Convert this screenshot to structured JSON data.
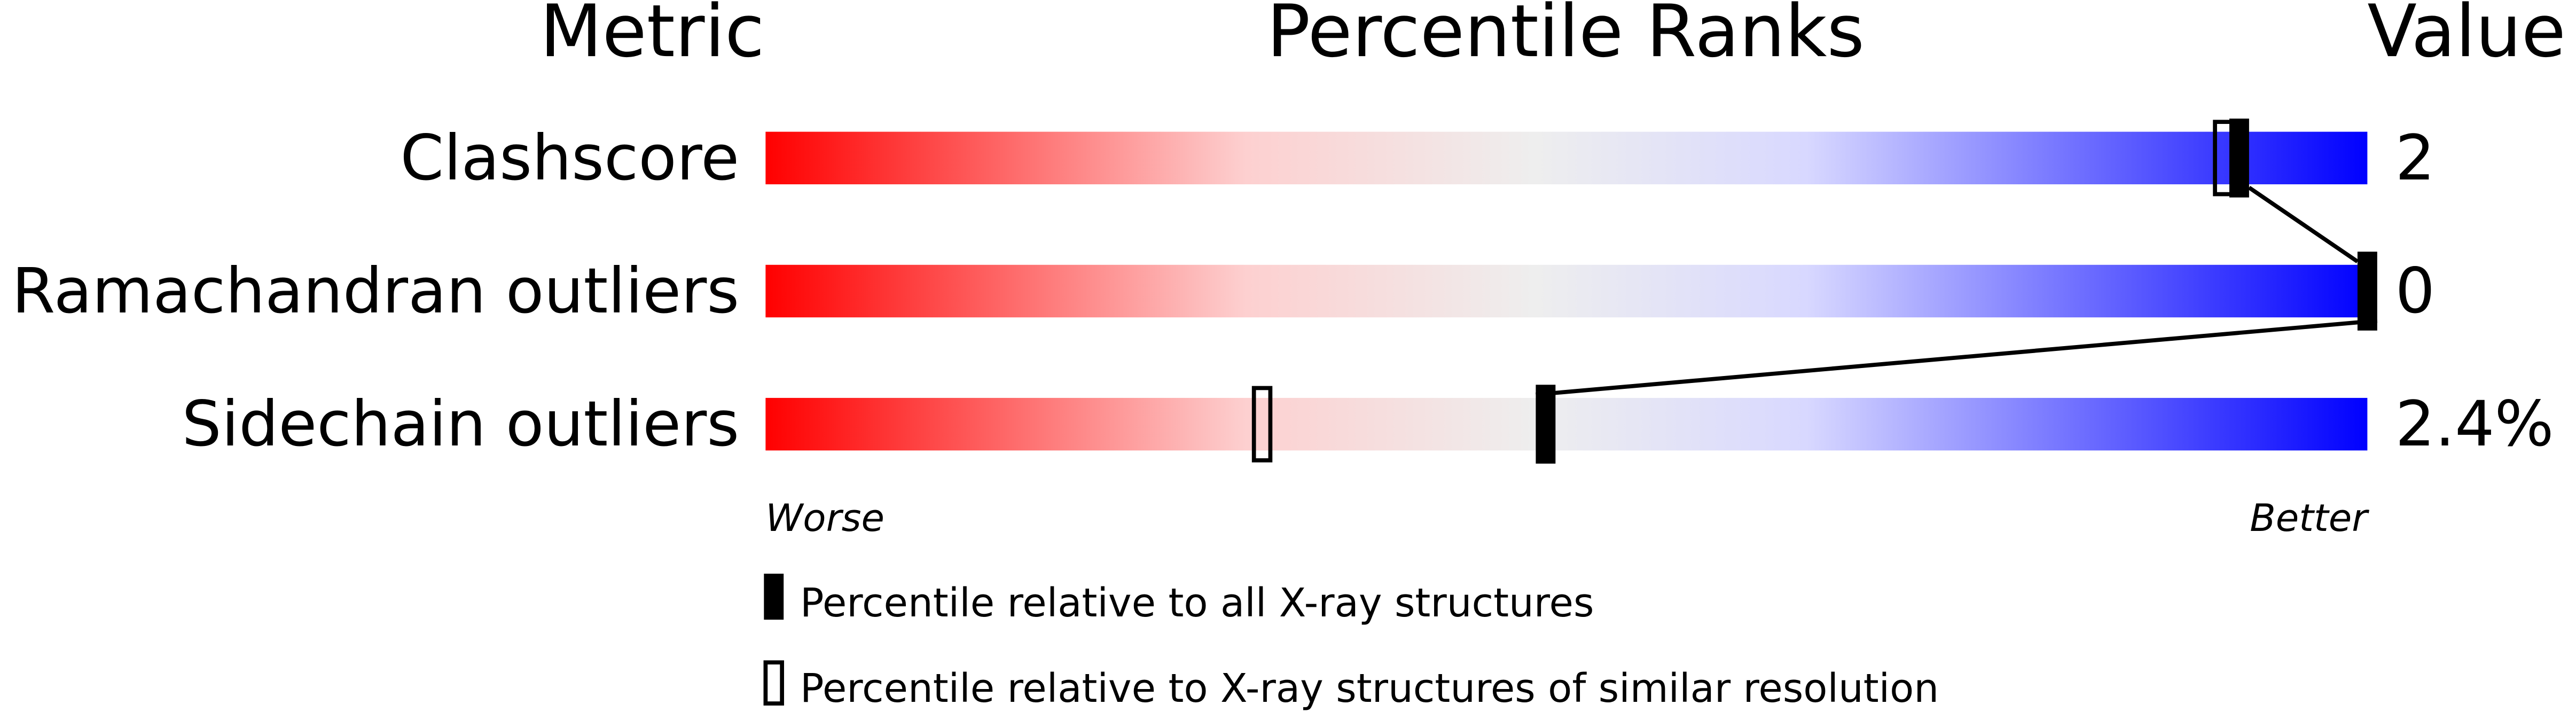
{
  "chart_data": {
    "type": "percentile-slider",
    "headers": {
      "metric": "Metric",
      "ranks": "Percentile Ranks",
      "value": "Value"
    },
    "xlim": [
      0,
      100
    ],
    "axis_labels": {
      "left": "Worse",
      "right": "Better"
    },
    "gradient_colors": [
      "#ff0000",
      "#fdd0d0",
      "#eeeeee",
      "#d8d8ff",
      "#0000ff"
    ],
    "rows": [
      {
        "metric": "Clashscore",
        "value": "2",
        "percentile_all": 92,
        "percentile_similar": 91
      },
      {
        "metric": "Ramachandran outliers",
        "value": "0",
        "percentile_all": 100,
        "percentile_similar": 100
      },
      {
        "metric": "Sidechain outliers",
        "value": "2.4%",
        "percentile_all": 48.7,
        "percentile_similar": 31
      }
    ],
    "legend": [
      {
        "marker": "filled",
        "label": "Percentile relative to all X-ray structures"
      },
      {
        "marker": "open",
        "label": "Percentile relative to X-ray structures of similar resolution"
      }
    ]
  }
}
